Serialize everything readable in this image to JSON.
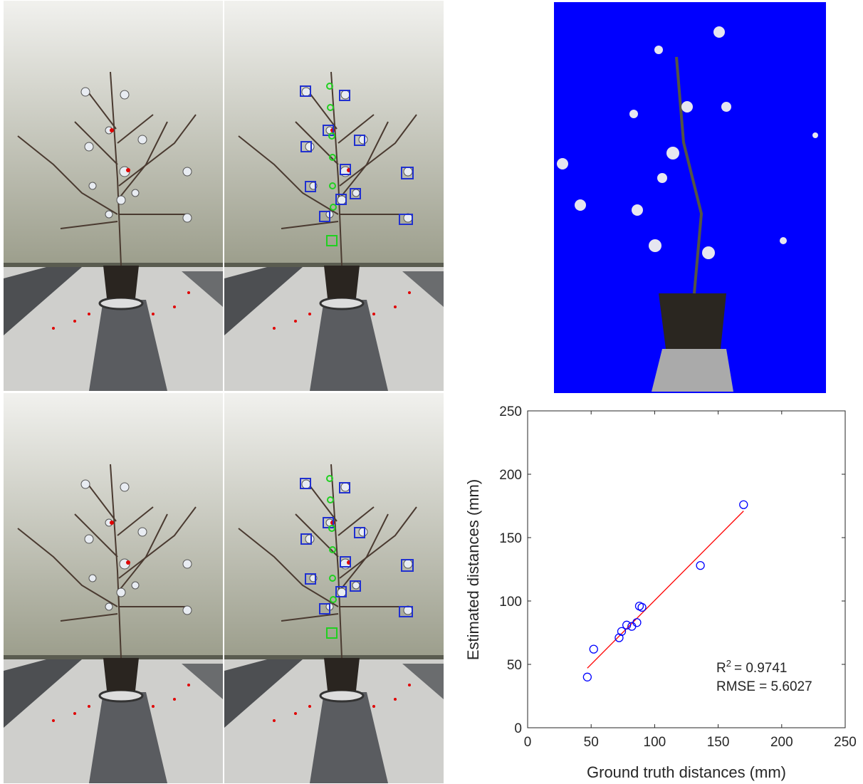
{
  "chart_data": {
    "type": "scatter",
    "xlabel": "Ground truth distances (mm)",
    "ylabel": "Estimated distances (mm)",
    "x": [
      47,
      52,
      72,
      74,
      78,
      82,
      86,
      88,
      90,
      136,
      170
    ],
    "series": [
      {
        "color": "#0000ff",
        "values": [
          40,
          62,
          71,
          76,
          81,
          80,
          83,
          96,
          95,
          128,
          176
        ]
      }
    ],
    "fit": {
      "x": [
        47,
        170
      ],
      "values": [
        47,
        171
      ],
      "color": "#ff0000"
    },
    "xlim": [
      0,
      250
    ],
    "ylim": [
      0,
      250
    ],
    "xticks": [
      0,
      50,
      100,
      150,
      200,
      250
    ],
    "yticks": [
      0,
      50,
      100,
      150,
      200,
      250
    ],
    "annotations": [
      {
        "text": "R",
        "superscript": "2",
        "value": "= 0.9741"
      },
      {
        "text": "RMSE = 5.6027"
      }
    ]
  }
}
